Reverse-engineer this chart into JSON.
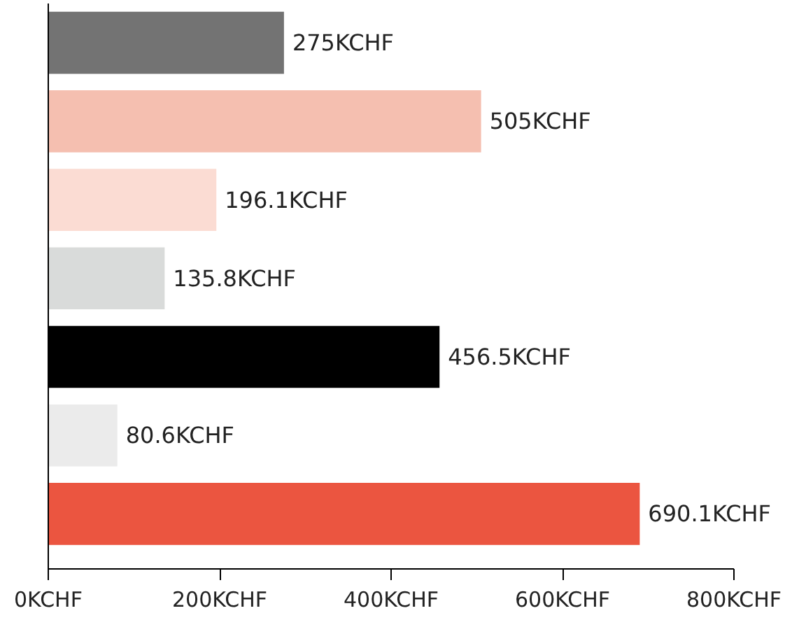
{
  "chart_data": {
    "type": "bar",
    "orientation": "horizontal",
    "categories": [
      null,
      null,
      null,
      null,
      null,
      null,
      null
    ],
    "values": [
      275,
      505,
      196.1,
      135.8,
      456.5,
      80.6,
      690.1
    ],
    "colors": [
      "#737373",
      "#f5bfb0",
      "#fbdcd3",
      "#d9dbda",
      "#000000",
      "#ebebeb",
      "#eb5540"
    ],
    "value_labels": [
      "275KCHF",
      "505KCHF",
      "196.1KCHF",
      "135.8KCHF",
      "456.5KCHF",
      "80.6KCHF",
      "690.1KCHF"
    ],
    "xlim": [
      0,
      800
    ],
    "xticks": [
      {
        "value": 0,
        "label": "0KCHF"
      },
      {
        "value": 200,
        "label": "200KCHF"
      },
      {
        "value": 400,
        "label": "400KCHF"
      },
      {
        "value": 600,
        "label": "600KCHF"
      },
      {
        "value": 800,
        "label": "800KCHF"
      }
    ],
    "grid": false
  }
}
